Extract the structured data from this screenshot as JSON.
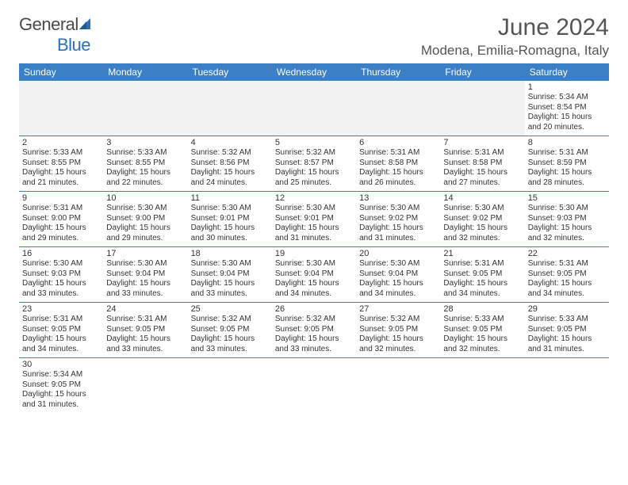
{
  "brand": {
    "name_a": "General",
    "name_b": "Blue"
  },
  "title": "June 2024",
  "location": "Modena, Emilia-Romagna, Italy",
  "colors": {
    "header_bg": "#3b7fc4",
    "header_text": "#ffffff",
    "rule": "#3b7fc4",
    "text": "#333333",
    "title_text": "#555555"
  },
  "weekdays": [
    "Sunday",
    "Monday",
    "Tuesday",
    "Wednesday",
    "Thursday",
    "Friday",
    "Saturday"
  ],
  "weeks": [
    [
      null,
      null,
      null,
      null,
      null,
      null,
      {
        "d": "1",
        "sr": "Sunrise: 5:34 AM",
        "ss": "Sunset: 8:54 PM",
        "dl1": "Daylight: 15 hours",
        "dl2": "and 20 minutes."
      }
    ],
    [
      {
        "d": "2",
        "sr": "Sunrise: 5:33 AM",
        "ss": "Sunset: 8:55 PM",
        "dl1": "Daylight: 15 hours",
        "dl2": "and 21 minutes."
      },
      {
        "d": "3",
        "sr": "Sunrise: 5:33 AM",
        "ss": "Sunset: 8:55 PM",
        "dl1": "Daylight: 15 hours",
        "dl2": "and 22 minutes."
      },
      {
        "d": "4",
        "sr": "Sunrise: 5:32 AM",
        "ss": "Sunset: 8:56 PM",
        "dl1": "Daylight: 15 hours",
        "dl2": "and 24 minutes."
      },
      {
        "d": "5",
        "sr": "Sunrise: 5:32 AM",
        "ss": "Sunset: 8:57 PM",
        "dl1": "Daylight: 15 hours",
        "dl2": "and 25 minutes."
      },
      {
        "d": "6",
        "sr": "Sunrise: 5:31 AM",
        "ss": "Sunset: 8:58 PM",
        "dl1": "Daylight: 15 hours",
        "dl2": "and 26 minutes."
      },
      {
        "d": "7",
        "sr": "Sunrise: 5:31 AM",
        "ss": "Sunset: 8:58 PM",
        "dl1": "Daylight: 15 hours",
        "dl2": "and 27 minutes."
      },
      {
        "d": "8",
        "sr": "Sunrise: 5:31 AM",
        "ss": "Sunset: 8:59 PM",
        "dl1": "Daylight: 15 hours",
        "dl2": "and 28 minutes."
      }
    ],
    [
      {
        "d": "9",
        "sr": "Sunrise: 5:31 AM",
        "ss": "Sunset: 9:00 PM",
        "dl1": "Daylight: 15 hours",
        "dl2": "and 29 minutes."
      },
      {
        "d": "10",
        "sr": "Sunrise: 5:30 AM",
        "ss": "Sunset: 9:00 PM",
        "dl1": "Daylight: 15 hours",
        "dl2": "and 29 minutes."
      },
      {
        "d": "11",
        "sr": "Sunrise: 5:30 AM",
        "ss": "Sunset: 9:01 PM",
        "dl1": "Daylight: 15 hours",
        "dl2": "and 30 minutes."
      },
      {
        "d": "12",
        "sr": "Sunrise: 5:30 AM",
        "ss": "Sunset: 9:01 PM",
        "dl1": "Daylight: 15 hours",
        "dl2": "and 31 minutes."
      },
      {
        "d": "13",
        "sr": "Sunrise: 5:30 AM",
        "ss": "Sunset: 9:02 PM",
        "dl1": "Daylight: 15 hours",
        "dl2": "and 31 minutes."
      },
      {
        "d": "14",
        "sr": "Sunrise: 5:30 AM",
        "ss": "Sunset: 9:02 PM",
        "dl1": "Daylight: 15 hours",
        "dl2": "and 32 minutes."
      },
      {
        "d": "15",
        "sr": "Sunrise: 5:30 AM",
        "ss": "Sunset: 9:03 PM",
        "dl1": "Daylight: 15 hours",
        "dl2": "and 32 minutes."
      }
    ],
    [
      {
        "d": "16",
        "sr": "Sunrise: 5:30 AM",
        "ss": "Sunset: 9:03 PM",
        "dl1": "Daylight: 15 hours",
        "dl2": "and 33 minutes."
      },
      {
        "d": "17",
        "sr": "Sunrise: 5:30 AM",
        "ss": "Sunset: 9:04 PM",
        "dl1": "Daylight: 15 hours",
        "dl2": "and 33 minutes."
      },
      {
        "d": "18",
        "sr": "Sunrise: 5:30 AM",
        "ss": "Sunset: 9:04 PM",
        "dl1": "Daylight: 15 hours",
        "dl2": "and 33 minutes."
      },
      {
        "d": "19",
        "sr": "Sunrise: 5:30 AM",
        "ss": "Sunset: 9:04 PM",
        "dl1": "Daylight: 15 hours",
        "dl2": "and 34 minutes."
      },
      {
        "d": "20",
        "sr": "Sunrise: 5:30 AM",
        "ss": "Sunset: 9:04 PM",
        "dl1": "Daylight: 15 hours",
        "dl2": "and 34 minutes."
      },
      {
        "d": "21",
        "sr": "Sunrise: 5:31 AM",
        "ss": "Sunset: 9:05 PM",
        "dl1": "Daylight: 15 hours",
        "dl2": "and 34 minutes."
      },
      {
        "d": "22",
        "sr": "Sunrise: 5:31 AM",
        "ss": "Sunset: 9:05 PM",
        "dl1": "Daylight: 15 hours",
        "dl2": "and 34 minutes."
      }
    ],
    [
      {
        "d": "23",
        "sr": "Sunrise: 5:31 AM",
        "ss": "Sunset: 9:05 PM",
        "dl1": "Daylight: 15 hours",
        "dl2": "and 34 minutes."
      },
      {
        "d": "24",
        "sr": "Sunrise: 5:31 AM",
        "ss": "Sunset: 9:05 PM",
        "dl1": "Daylight: 15 hours",
        "dl2": "and 33 minutes."
      },
      {
        "d": "25",
        "sr": "Sunrise: 5:32 AM",
        "ss": "Sunset: 9:05 PM",
        "dl1": "Daylight: 15 hours",
        "dl2": "and 33 minutes."
      },
      {
        "d": "26",
        "sr": "Sunrise: 5:32 AM",
        "ss": "Sunset: 9:05 PM",
        "dl1": "Daylight: 15 hours",
        "dl2": "and 33 minutes."
      },
      {
        "d": "27",
        "sr": "Sunrise: 5:32 AM",
        "ss": "Sunset: 9:05 PM",
        "dl1": "Daylight: 15 hours",
        "dl2": "and 32 minutes."
      },
      {
        "d": "28",
        "sr": "Sunrise: 5:33 AM",
        "ss": "Sunset: 9:05 PM",
        "dl1": "Daylight: 15 hours",
        "dl2": "and 32 minutes."
      },
      {
        "d": "29",
        "sr": "Sunrise: 5:33 AM",
        "ss": "Sunset: 9:05 PM",
        "dl1": "Daylight: 15 hours",
        "dl2": "and 31 minutes."
      }
    ],
    [
      {
        "d": "30",
        "sr": "Sunrise: 5:34 AM",
        "ss": "Sunset: 9:05 PM",
        "dl1": "Daylight: 15 hours",
        "dl2": "and 31 minutes."
      },
      null,
      null,
      null,
      null,
      null,
      null
    ]
  ]
}
